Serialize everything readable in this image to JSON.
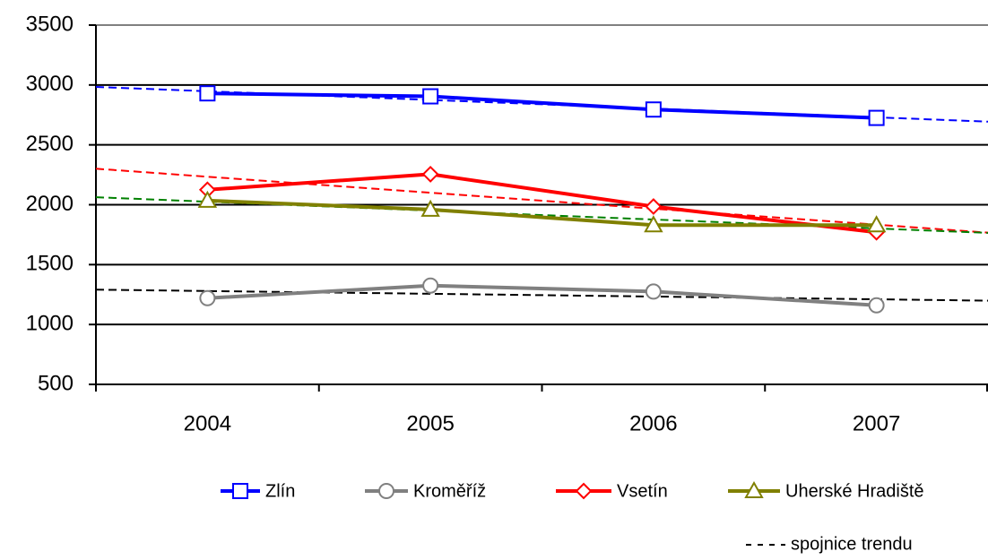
{
  "chart_data": {
    "type": "line",
    "categories": [
      "2004",
      "2005",
      "2006",
      "2007"
    ],
    "series": [
      {
        "name": "Zlín",
        "color": "#0000ff",
        "marker": "square",
        "trend_color": "#0000ff",
        "values": [
          2930,
          2905,
          2795,
          2725
        ]
      },
      {
        "name": "Kroměříž",
        "color": "#808080",
        "marker": "circle",
        "trend_color": "#000000",
        "values": [
          1220,
          1325,
          1275,
          1160
        ]
      },
      {
        "name": "Vsetín",
        "color": "#ff0000",
        "marker": "diamond",
        "trend_color": "#ff0000",
        "values": [
          2125,
          2255,
          1985,
          1770
        ]
      },
      {
        "name": "Uherské Hradiště",
        "color": "#808000",
        "marker": "triangle",
        "trend_color": "#008000",
        "values": [
          2035,
          1960,
          1830,
          1830
        ]
      }
    ],
    "ylim": [
      500,
      3500
    ],
    "yticks": [
      500,
      1000,
      1500,
      2000,
      2500,
      3000,
      3500
    ],
    "grid": true,
    "trendline": true,
    "trendline_label": "spojnice trendu",
    "legend": "bottom"
  }
}
